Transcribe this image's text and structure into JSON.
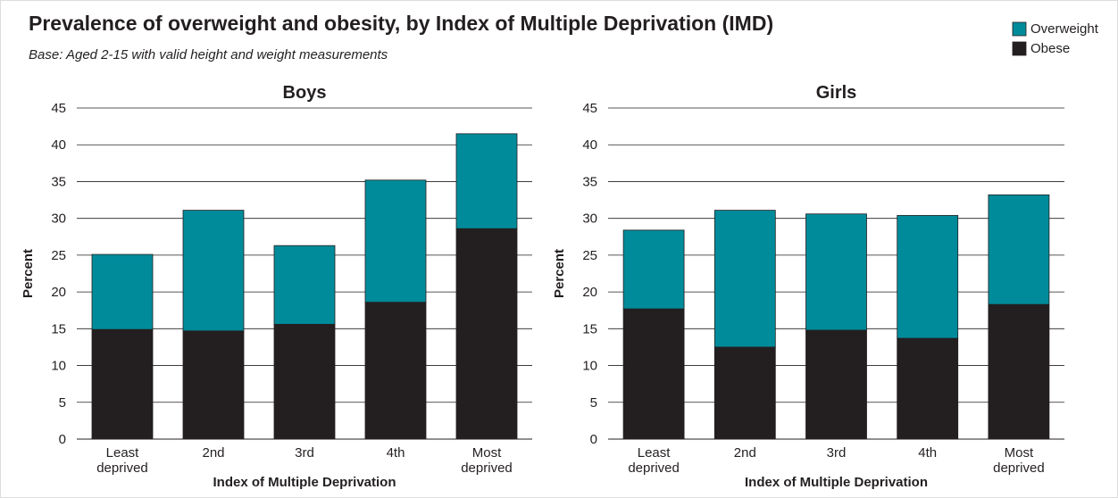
{
  "title": "Prevalence of overweight and obesity, by Index of Multiple Deprivation (IMD)",
  "subtitle": "Base: Aged 2-15 with valid height and weight measurements",
  "chart_data": [
    {
      "type": "stacked-bar",
      "title": "Boys",
      "y_label": "Percent",
      "x_label": "Index of Multiple Deprivation",
      "categories": [
        "Least deprived",
        "2nd",
        "3rd",
        "4th",
        "Most deprived"
      ],
      "series": [
        {
          "name": "Obese",
          "color": "#231f20",
          "values": [
            14.9,
            14.7,
            15.6,
            18.6,
            28.6
          ]
        },
        {
          "name": "Overweight",
          "color": "#008b9a",
          "values": [
            10.2,
            16.4,
            10.7,
            16.6,
            12.9
          ]
        }
      ],
      "ylim": [
        0,
        45
      ],
      "yticks": [
        0,
        5,
        10,
        15,
        20,
        25,
        30,
        35,
        40,
        45
      ],
      "grid": true
    },
    {
      "type": "stacked-bar",
      "title": "Girls",
      "y_label": "Percent",
      "x_label": "Index of Multiple Deprivation",
      "categories": [
        "Least deprived",
        "2nd",
        "3rd",
        "4th",
        "Most deprived"
      ],
      "series": [
        {
          "name": "Obese",
          "color": "#231f20",
          "values": [
            17.7,
            12.5,
            14.8,
            13.7,
            18.3
          ]
        },
        {
          "name": "Overweight",
          "color": "#008b9a",
          "values": [
            10.7,
            18.6,
            15.8,
            16.7,
            14.9
          ]
        }
      ],
      "ylim": [
        0,
        45
      ],
      "yticks": [
        0,
        5,
        10,
        15,
        20,
        25,
        30,
        35,
        40,
        45
      ],
      "grid": true
    }
  ]
}
